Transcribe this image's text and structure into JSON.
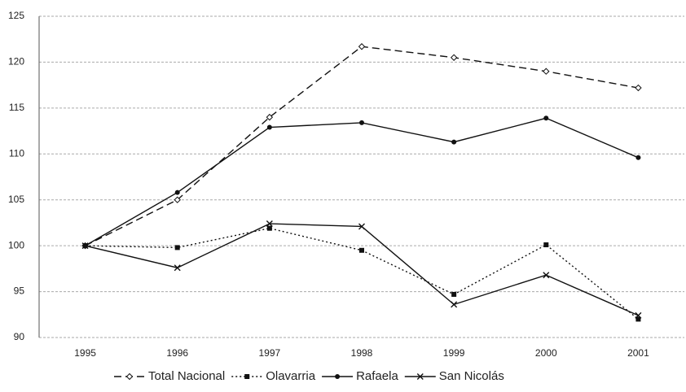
{
  "chart_data": {
    "type": "line",
    "categories": [
      "1995",
      "1996",
      "1997",
      "1998",
      "1999",
      "2000",
      "2001"
    ],
    "series": [
      {
        "name": "Total Nacional",
        "color": "#111111",
        "dash": "9,5",
        "marker": "diamond",
        "values": [
          100,
          105,
          114,
          121.7,
          120.5,
          119,
          117.2
        ]
      },
      {
        "name": "Olavarria",
        "color": "#111111",
        "dash": "2,3",
        "marker": "square",
        "values": [
          100,
          99.8,
          101.9,
          99.5,
          94.7,
          100.1,
          92
        ]
      },
      {
        "name": "Rafaela",
        "color": "#111111",
        "dash": "none",
        "marker": "circle",
        "values": [
          100,
          105.8,
          112.9,
          113.4,
          111.3,
          113.9,
          109.6
        ]
      },
      {
        "name": "San Nicolás",
        "color": "#111111",
        "dash": "none",
        "marker": "x",
        "values": [
          100,
          97.6,
          102.4,
          102.1,
          93.6,
          96.8,
          92.4
        ]
      }
    ],
    "ylim": [
      90,
      125
    ],
    "yticks": [
      90,
      95,
      100,
      105,
      110,
      115,
      120,
      125
    ],
    "grid": true,
    "legend": "bottom"
  }
}
